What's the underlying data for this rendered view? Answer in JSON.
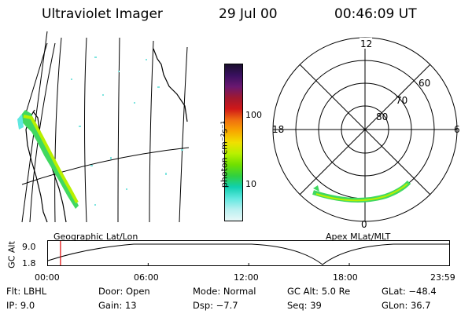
{
  "header": {
    "title": "Ultraviolet Imager",
    "date": "29 Jul 00",
    "time": "00:46:09 UT"
  },
  "colorbar": {
    "unit_label": "photon cm⁻²s⁻¹",
    "ticks": [
      "100",
      "10"
    ],
    "colors": [
      "#1a0f2e",
      "#3a1060",
      "#6a1870",
      "#a01830",
      "#d01818",
      "#f07010",
      "#f8a800",
      "#f0e000",
      "#b8f000",
      "#70e000",
      "#30d040",
      "#10d0b0",
      "#60e8e0",
      "#b8f0f0",
      "#e8f8f8"
    ]
  },
  "polar_plot": {
    "mlt_labels": {
      "top": "12",
      "right": "6",
      "bottom": "0",
      "left": "18"
    },
    "lat_labels": [
      "60",
      "70",
      "80"
    ]
  },
  "map_labels": {
    "left": "Geographic Lat/Lon",
    "right": "Apex MLat/MLT"
  },
  "altitude_plot": {
    "axis_label": "GC Alt",
    "y_max": "9.0",
    "y_min": "1.8",
    "time_ticks": [
      "00:00",
      "06:00",
      "12:00",
      "18:00",
      "23:59"
    ],
    "marker_time_hours": 0.77
  },
  "footer": {
    "row1": {
      "filter": "Flt: LBHL",
      "door": "Door: Open",
      "mode": "Mode: Normal",
      "gc_alt": "GC Alt: 5.0 Re",
      "glat": "GLat: −48.4"
    },
    "row2": {
      "ip": "IP:  9.0",
      "gain": "Gain: 13",
      "dsp": "Dsp:   −7.7",
      "seq": "Seq: 39",
      "glon": "GLon:  36.7"
    }
  }
}
